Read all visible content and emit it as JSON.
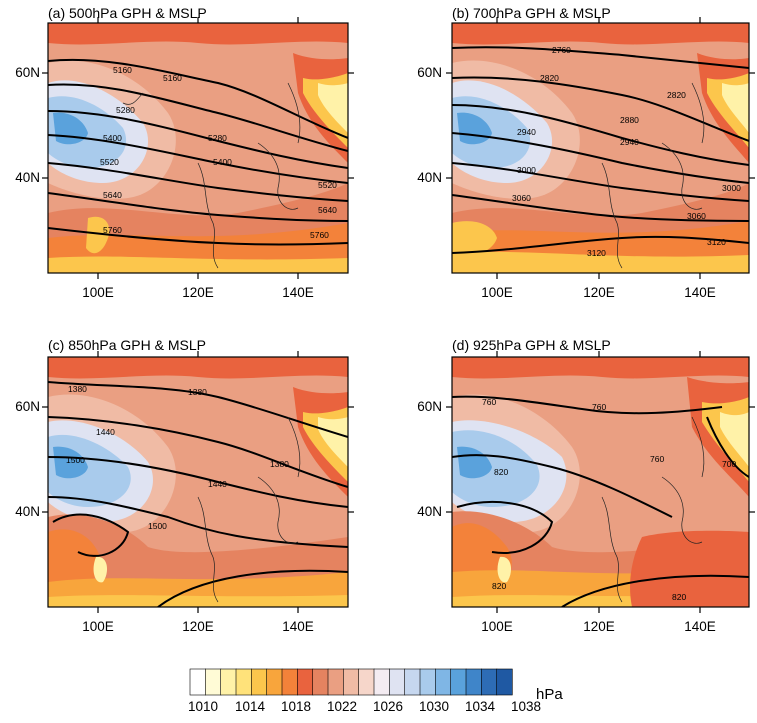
{
  "figure": {
    "units": "hPa",
    "colorbar": {
      "labels": [
        "1010",
        "1014",
        "1018",
        "1022",
        "1026",
        "1030",
        "1034",
        "1038"
      ],
      "colors": [
        "#ffffff",
        "#fffbd6",
        "#fff2a8",
        "#ffe27a",
        "#fcc64c",
        "#f8a53c",
        "#f3823a",
        "#e9633e",
        "#e58360",
        "#ea9f82",
        "#f0bba5",
        "#f6d6ca",
        "#f4ecf2",
        "#dfe3f2",
        "#c6d7ef",
        "#a9cbec",
        "#7fb6e5",
        "#5aa2dc",
        "#3f85c9",
        "#2d6cb5",
        "#1f59a3"
      ]
    },
    "axes": {
      "lat_ticks": [
        "60N",
        "40N"
      ],
      "lon_ticks": [
        "100E",
        "120E",
        "140E"
      ]
    },
    "panels": [
      {
        "title": "(a) 500hPa GPH & MSLP",
        "contours": [
          "5160",
          "5160",
          "5280",
          "5280",
          "5400",
          "5400",
          "5520",
          "5520",
          "5640",
          "5640",
          "5760",
          "5760"
        ]
      },
      {
        "title": "(b) 700hPa GPH & MSLP",
        "contours": [
          "2760",
          "2820",
          "2820",
          "2880",
          "2940",
          "2940",
          "3000",
          "3000",
          "3060",
          "3060",
          "3120",
          "3120"
        ]
      },
      {
        "title": "(c) 850hPa GPH & MSLP",
        "contours": [
          "1380",
          "1380",
          "1380",
          "1440",
          "1440",
          "1500",
          "1500"
        ]
      },
      {
        "title": "(d) 925hPa GPH & MSLP",
        "contours": [
          "760",
          "760",
          "760",
          "820",
          "820",
          "820",
          "700"
        ]
      }
    ]
  }
}
